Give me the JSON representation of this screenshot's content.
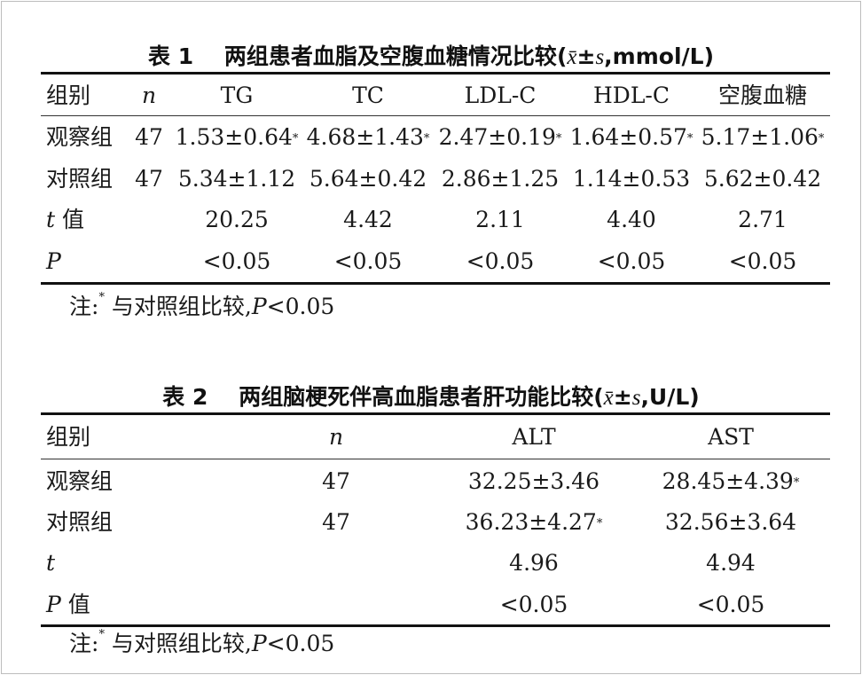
{
  "table1": {
    "caption": {
      "label": "表 1",
      "title": "两组患者血脂及空腹血糖情况比较",
      "stat_x": "x̄",
      "stat_pm": "±",
      "stat_s": "s",
      "unit": ",mmol/L)"
    },
    "header": [
      "组别",
      "n",
      "TG",
      "TC",
      "LDL-C",
      "HDL-C",
      "空腹血糖"
    ],
    "rows": [
      {
        "group": "观察组",
        "n": "47",
        "v": [
          "1.53±0.64",
          "4.68±1.43",
          "2.47±0.19",
          "1.64±0.57",
          "5.17±1.06"
        ],
        "sig": [
          "*",
          "*",
          "*",
          "*",
          "*"
        ]
      },
      {
        "group": "对照组",
        "n": "47",
        "v": [
          "5.34±1.12",
          "5.64±0.42",
          "2.86±1.25",
          "1.14±0.53",
          "5.62±0.42"
        ],
        "sig": [
          "",
          "",
          "",
          "",
          ""
        ]
      },
      {
        "group_it": "t",
        "group": " 值",
        "n": "",
        "v": [
          "20.25",
          "4.42",
          "2.11",
          "4.40",
          "2.71"
        ],
        "sig": [
          "",
          "",
          "",
          "",
          ""
        ]
      },
      {
        "group_it": "P",
        "group": "",
        "n": "",
        "v": [
          "<0.05",
          "<0.05",
          "<0.05",
          "<0.05",
          "<0.05"
        ],
        "sig": [
          "",
          "",
          "",
          "",
          ""
        ]
      }
    ],
    "note": {
      "prefix": "注:",
      "star": "*",
      "text": " 与对照组比较,",
      "p": "P",
      "tail": "<0.05"
    }
  },
  "table2": {
    "caption": {
      "label": "表 2",
      "title": "两组脑梗死伴高血脂患者肝功能比较",
      "stat_x": "x̄",
      "stat_pm": "±",
      "stat_s": "s",
      "unit": ",U/L)"
    },
    "header": [
      "组别",
      "n",
      "ALT",
      "AST"
    ],
    "rows": [
      {
        "group": "观察组",
        "n": "47",
        "v": [
          "32.25±3.46",
          "28.45±4.39"
        ],
        "sig": [
          "",
          "*"
        ]
      },
      {
        "group": "对照组",
        "n": "47",
        "v": [
          "36.23±4.27",
          "32.56±3.64"
        ],
        "sig": [
          "*",
          ""
        ]
      },
      {
        "group_it": "t",
        "group": "",
        "n": "",
        "v": [
          "4.96",
          "4.94"
        ],
        "sig": [
          "",
          ""
        ]
      },
      {
        "group_it": "P",
        "group": " 值",
        "n": "",
        "v": [
          "<0.05",
          "<0.05"
        ],
        "sig": [
          "",
          ""
        ]
      }
    ],
    "note": {
      "prefix": "注:",
      "star": "*",
      "text": " 与对照组比较,",
      "p": "P",
      "tail": "<0.05"
    }
  }
}
